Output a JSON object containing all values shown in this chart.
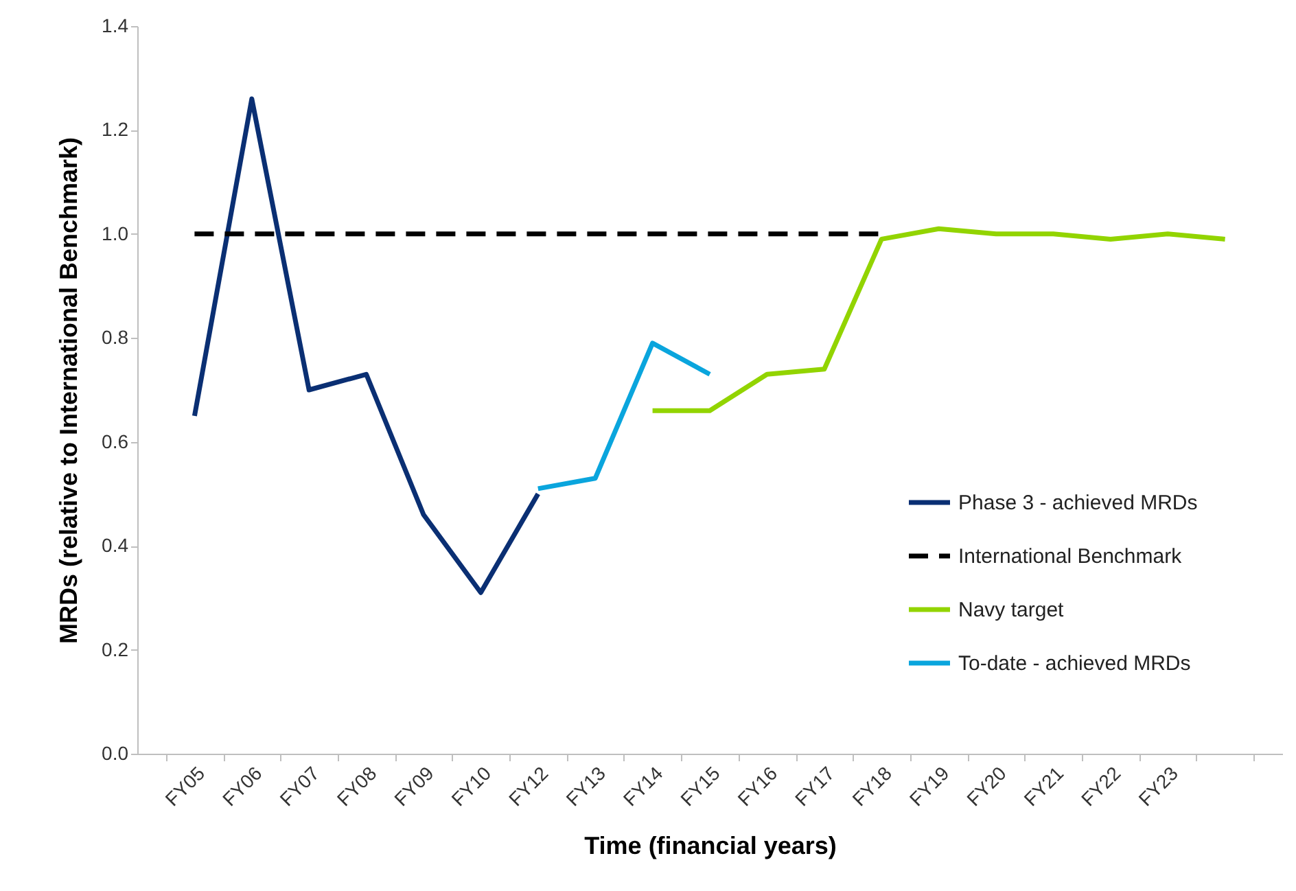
{
  "chart_data": {
    "type": "line",
    "xlabel": "Time (financial years)",
    "ylabel": "MRDs (relative to International Benchmark)",
    "categories": [
      "FY05",
      "FY06",
      "FY07",
      "FY08",
      "FY09",
      "FY10",
      "FY12",
      "FY13",
      "FY14",
      "FY15",
      "FY16",
      "FY17",
      "FY18",
      "FY19",
      "FY20",
      "FY21",
      "FY22",
      "FY23",
      null
    ],
    "series": [
      {
        "name": "Phase 3 - achieved MRDs",
        "color": "#0a2f73",
        "line_style": "solid",
        "values": [
          0.65,
          1.26,
          0.7,
          0.73,
          0.46,
          0.31,
          0.5,
          null,
          null,
          null,
          null,
          null,
          null,
          null,
          null,
          null,
          null,
          null,
          null
        ]
      },
      {
        "name": "International Benchmark",
        "color": "#000000",
        "line_style": "dashed",
        "values": [
          1.0,
          1.0,
          1.0,
          1.0,
          1.0,
          1.0,
          1.0,
          1.0,
          1.0,
          1.0,
          1.0,
          1.0,
          1.0,
          null,
          null,
          null,
          null,
          null,
          null
        ]
      },
      {
        "name": "Navy target",
        "color": "#92d400",
        "line_style": "solid",
        "values": [
          null,
          null,
          null,
          null,
          null,
          null,
          null,
          null,
          0.66,
          0.66,
          0.73,
          0.74,
          0.99,
          1.01,
          1.0,
          1.0,
          0.99,
          1.0,
          0.99
        ]
      },
      {
        "name": "To-date - achieved MRDs",
        "color": "#0aa5dd",
        "line_style": "solid",
        "values": [
          null,
          null,
          null,
          null,
          null,
          null,
          0.51,
          0.53,
          0.79,
          0.73,
          null,
          null,
          null,
          null,
          null,
          null,
          null,
          null,
          null
        ]
      }
    ],
    "ylim": [
      0,
      1.4
    ],
    "yticks": [
      {
        "value": 0,
        "label": "0.0"
      },
      {
        "value": 0.2,
        "label": "0.2"
      },
      {
        "value": 0.4,
        "label": "0.4"
      },
      {
        "value": 0.6,
        "label": "0.6"
      },
      {
        "value": 0.8,
        "label": "0.8"
      },
      {
        "value": 1.0,
        "label": "1.0"
      },
      {
        "value": 1.2,
        "label": "1.2"
      },
      {
        "value": 1.4,
        "label": "1.4"
      }
    ],
    "grid": false,
    "legend": "bottom right"
  }
}
